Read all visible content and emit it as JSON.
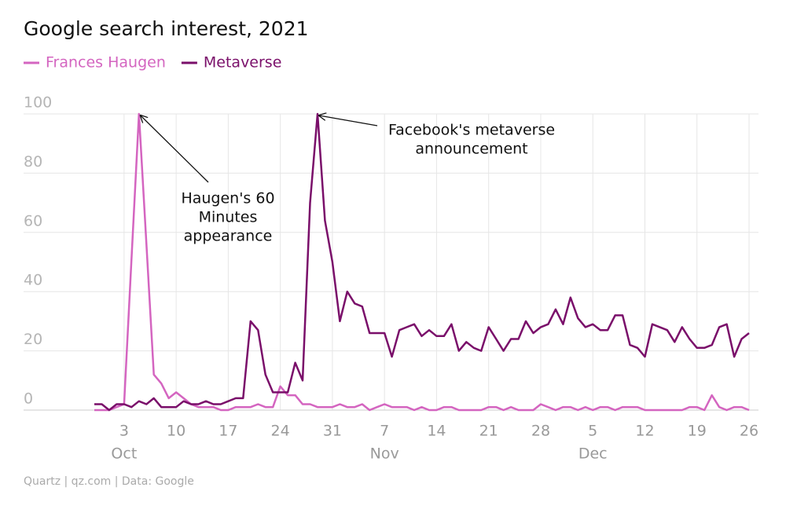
{
  "chart_data": {
    "type": "line",
    "title": "Google search interest, 2021",
    "source": "Quartz | qz.com | Data: Google",
    "x": [
      "2021-09-29",
      "2021-09-30",
      "2021-10-01",
      "2021-10-02",
      "2021-10-03",
      "2021-10-04",
      "2021-10-05",
      "2021-10-06",
      "2021-10-07",
      "2021-10-08",
      "2021-10-09",
      "2021-10-10",
      "2021-10-11",
      "2021-10-12",
      "2021-10-13",
      "2021-10-14",
      "2021-10-15",
      "2021-10-16",
      "2021-10-17",
      "2021-10-18",
      "2021-10-19",
      "2021-10-20",
      "2021-10-21",
      "2021-10-22",
      "2021-10-23",
      "2021-10-24",
      "2021-10-25",
      "2021-10-26",
      "2021-10-27",
      "2021-10-28",
      "2021-10-29",
      "2021-10-30",
      "2021-10-31",
      "2021-11-01",
      "2021-11-02",
      "2021-11-03",
      "2021-11-04",
      "2021-11-05",
      "2021-11-06",
      "2021-11-07",
      "2021-11-08",
      "2021-11-09",
      "2021-11-10",
      "2021-11-11",
      "2021-11-12",
      "2021-11-13",
      "2021-11-14",
      "2021-11-15",
      "2021-11-16",
      "2021-11-17",
      "2021-11-18",
      "2021-11-19",
      "2021-11-20",
      "2021-11-21",
      "2021-11-22",
      "2021-11-23",
      "2021-11-24",
      "2021-11-25",
      "2021-11-26",
      "2021-11-27",
      "2021-11-28",
      "2021-11-29",
      "2021-11-30",
      "2021-12-01",
      "2021-12-02",
      "2021-12-03",
      "2021-12-04",
      "2021-12-05",
      "2021-12-06",
      "2021-12-07",
      "2021-12-08",
      "2021-12-09",
      "2021-12-10",
      "2021-12-11",
      "2021-12-12",
      "2021-12-13",
      "2021-12-14",
      "2021-12-15",
      "2021-12-16",
      "2021-12-17",
      "2021-12-18",
      "2021-12-19",
      "2021-12-20",
      "2021-12-21",
      "2021-12-22",
      "2021-12-23",
      "2021-12-24",
      "2021-12-25",
      "2021-12-26"
    ],
    "series": [
      {
        "name": "Frances Haugen",
        "color": "#d465c0",
        "values": [
          0,
          0,
          0,
          1,
          2,
          51,
          100,
          56,
          12,
          9,
          4,
          6,
          4,
          2,
          1,
          1,
          1,
          0,
          0,
          1,
          1,
          1,
          2,
          1,
          1,
          8,
          5,
          5,
          2,
          2,
          1,
          1,
          1,
          2,
          1,
          1,
          2,
          0,
          1,
          2,
          1,
          1,
          1,
          0,
          1,
          0,
          0,
          1,
          1,
          0,
          0,
          0,
          0,
          1,
          1,
          0,
          1,
          0,
          0,
          0,
          2,
          1,
          0,
          1,
          1,
          0,
          1,
          0,
          1,
          1,
          0,
          1,
          1,
          1,
          0,
          0,
          0,
          0,
          0,
          0,
          1,
          1,
          0,
          5,
          1,
          0,
          1,
          1,
          0
        ]
      },
      {
        "name": "Metaverse",
        "color": "#7a0f6a",
        "values": [
          2,
          2,
          0,
          2,
          2,
          1,
          3,
          2,
          4,
          1,
          1,
          1,
          3,
          2,
          2,
          3,
          2,
          2,
          3,
          4,
          4,
          30,
          27,
          12,
          6,
          6,
          6,
          16,
          10,
          70,
          100,
          64,
          50,
          30,
          40,
          36,
          35,
          26,
          26,
          26,
          18,
          27,
          28,
          29,
          25,
          27,
          25,
          25,
          29,
          20,
          23,
          21,
          20,
          28,
          24,
          20,
          24,
          24,
          30,
          26,
          28,
          29,
          34,
          29,
          38,
          31,
          28,
          29,
          27,
          27,
          32,
          32,
          22,
          21,
          18,
          29,
          28,
          27,
          23,
          28,
          24,
          21,
          21,
          22,
          28,
          29,
          18,
          24,
          26
        ]
      }
    ],
    "xlim": [
      "2021-09-29",
      "2021-12-26"
    ],
    "xticks": [
      {
        "value": "2021-10-03",
        "label": "3"
      },
      {
        "value": "2021-10-10",
        "label": "10"
      },
      {
        "value": "2021-10-17",
        "label": "17"
      },
      {
        "value": "2021-10-24",
        "label": "24"
      },
      {
        "value": "2021-10-31",
        "label": "31"
      },
      {
        "value": "2021-11-07",
        "label": "7"
      },
      {
        "value": "2021-11-14",
        "label": "14"
      },
      {
        "value": "2021-11-21",
        "label": "21"
      },
      {
        "value": "2021-11-28",
        "label": "28"
      },
      {
        "value": "2021-12-05",
        "label": "5"
      },
      {
        "value": "2021-12-12",
        "label": "12"
      },
      {
        "value": "2021-12-19",
        "label": "19"
      },
      {
        "value": "2021-12-26",
        "label": "26"
      }
    ],
    "month_labels": [
      {
        "value": "2021-10-03",
        "label": "Oct"
      },
      {
        "value": "2021-11-07",
        "label": "Nov"
      },
      {
        "value": "2021-12-05",
        "label": "Dec"
      }
    ],
    "ylim": [
      0,
      100
    ],
    "yticks": [
      0,
      20,
      40,
      60,
      80,
      100
    ],
    "grid": true,
    "annotations": [
      {
        "lines": [
          "Haugen's 60",
          "Minutes",
          "appearance"
        ],
        "x": "2021-10-05",
        "y": 100
      },
      {
        "lines": [
          "Facebook's metaverse",
          "announcement"
        ],
        "x": "2021-10-29",
        "y": 100
      }
    ]
  }
}
